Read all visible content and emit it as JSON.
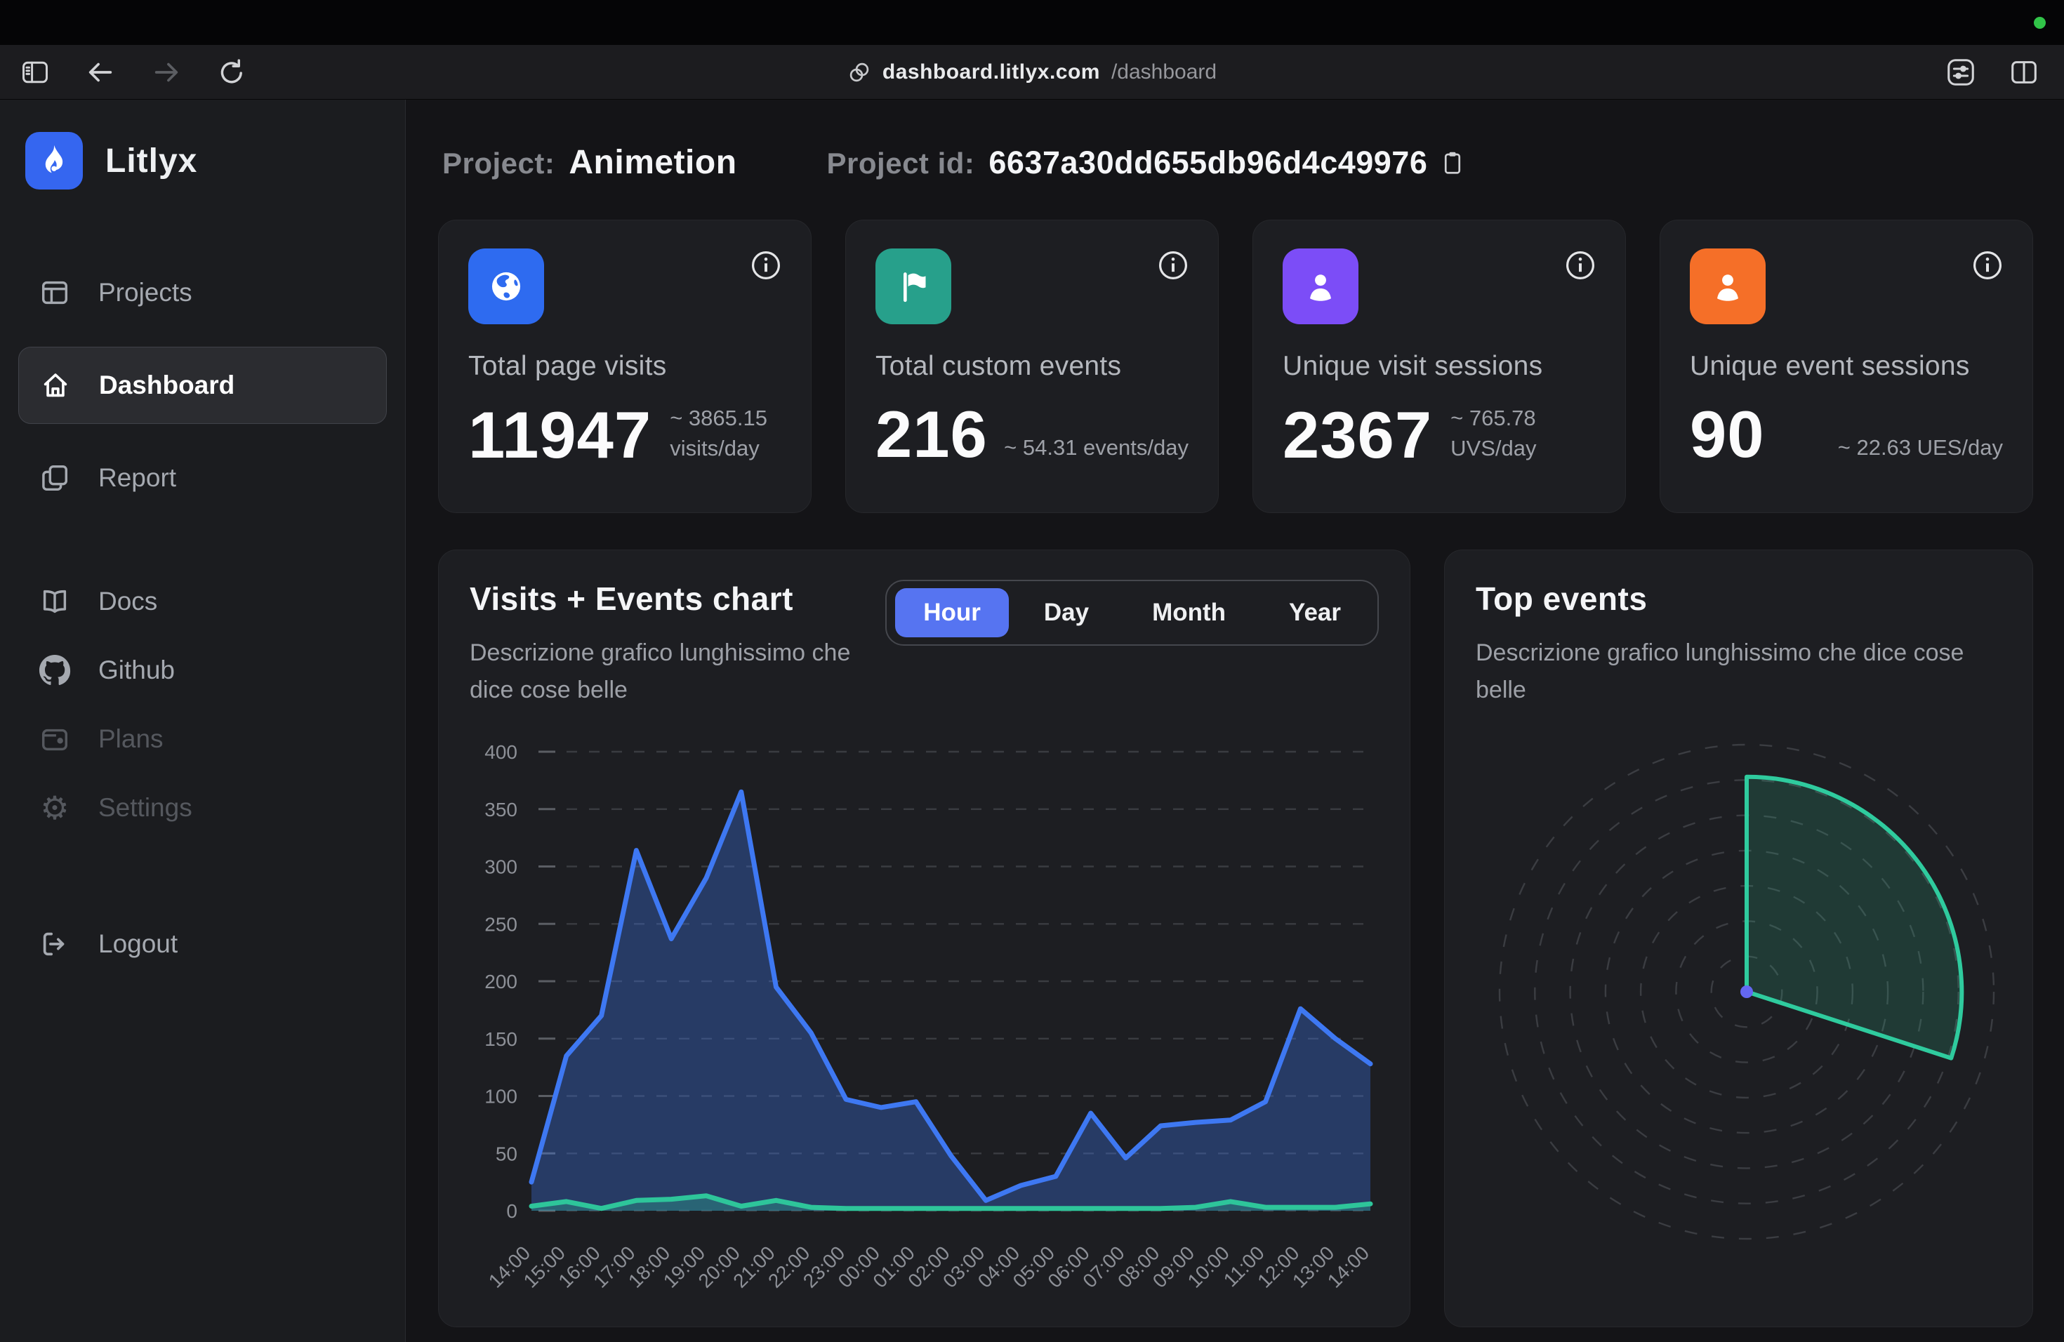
{
  "window": {
    "url_host": "dashboard.litlyx.com",
    "url_path": "/dashboard",
    "recording_indicator_color": "#31c448",
    "toolbar_icons": [
      "sidebar-toggle",
      "back",
      "forward",
      "reload",
      "link",
      "tune",
      "split-view"
    ]
  },
  "sidebar": {
    "brand": "Litlyx",
    "brand_color": "#3566f0",
    "nav_main": [
      {
        "label": "Projects",
        "icon": "projects-icon",
        "state": "default"
      },
      {
        "label": "Dashboard",
        "icon": "home-icon",
        "state": "active"
      },
      {
        "label": "Report",
        "icon": "report-icon",
        "state": "default"
      }
    ],
    "nav_secondary": [
      {
        "label": "Docs",
        "icon": "docs-icon",
        "state": "default"
      },
      {
        "label": "Github",
        "icon": "github-icon",
        "state": "default"
      },
      {
        "label": "Plans",
        "icon": "wallet-icon",
        "state": "disabled"
      },
      {
        "label": "Settings",
        "icon": "gear-icon",
        "state": "disabled"
      }
    ],
    "logout": {
      "label": "Logout",
      "icon": "logout-icon"
    }
  },
  "header": {
    "project_label": "Project:",
    "project_name": "Animetion",
    "project_id_label": "Project id:",
    "project_id": "6637a30dd655db96d4c49976",
    "copy_icon": "clipboard-icon"
  },
  "stats": [
    {
      "title": "Total page visits",
      "value": "11947",
      "note_line1": "~ 3865.15",
      "note_line2": "visits/day",
      "icon": "globe-icon",
      "color": "#2e6bf0"
    },
    {
      "title": "Total custom events",
      "value": "216",
      "note_line1": "~ 54.31 events/day",
      "note_line2": "",
      "icon": "flag-icon",
      "color": "#27a08b"
    },
    {
      "title": "Unique visit sessions",
      "value": "2367",
      "note_line1": "~ 765.78",
      "note_line2": "UVS/day",
      "icon": "user-icon",
      "color": "#7c4df7"
    },
    {
      "title": "Unique event sessions",
      "value": "90",
      "note_line1": "~ 22.63 UES/day",
      "note_line2": "",
      "icon": "user-icon",
      "color": "#f56f28"
    }
  ],
  "visits_chart": {
    "title": "Visits + Events chart",
    "subtitle": "Descrizione grafico lunghissimo che dice cose belle",
    "tabs": [
      "Hour",
      "Day",
      "Month",
      "Year"
    ],
    "active_tab": "Hour"
  },
  "top_events": {
    "title": "Top events",
    "subtitle": "Descrizione grafico lunghissimo che dice cose belle"
  },
  "chart_data": [
    {
      "id": "visits_events",
      "type": "area",
      "title": "Visits + Events chart",
      "x": [
        "14:00",
        "15:00",
        "16:00",
        "17:00",
        "18:00",
        "19:00",
        "20:00",
        "21:00",
        "22:00",
        "23:00",
        "00:00",
        "01:00",
        "02:00",
        "03:00",
        "04:00",
        "05:00",
        "06:00",
        "07:00",
        "08:00",
        "09:00",
        "10:00",
        "11:00",
        "12:00",
        "13:00",
        "14:00"
      ],
      "series": [
        {
          "name": "visits",
          "color": "#3e78f2",
          "fill": "rgba(62,120,242,0.32)",
          "values": [
            25,
            135,
            170,
            314,
            237,
            290,
            365,
            195,
            155,
            97,
            90,
            95,
            48,
            9,
            22,
            30,
            85,
            46,
            74,
            77,
            79,
            95,
            176,
            150,
            128
          ]
        },
        {
          "name": "events",
          "color": "#2ec59a",
          "fill": "rgba(46,197,154,0.30)",
          "values": [
            4,
            8,
            2,
            9,
            10,
            13,
            4,
            9,
            3,
            2,
            2,
            2,
            2,
            2,
            2,
            2,
            2,
            2,
            2,
            3,
            8,
            3,
            3,
            3,
            6
          ]
        }
      ],
      "ylim": [
        0,
        400
      ],
      "yticks": [
        0,
        50,
        100,
        150,
        200,
        250,
        300,
        350,
        400
      ],
      "grid": "horizontal-dashed",
      "legend": false
    },
    {
      "id": "top_events",
      "type": "polar-area",
      "title": "Top events",
      "rings": 7,
      "slices": [
        {
          "start_deg": 0,
          "sweep_deg": 108,
          "radius_frac": 0.87,
          "color": "#2fcb9e",
          "fill": "rgba(47,203,158,0.16)"
        }
      ],
      "center_dot_color": "#6467f2",
      "ring_color": "#3b3d42"
    }
  ]
}
